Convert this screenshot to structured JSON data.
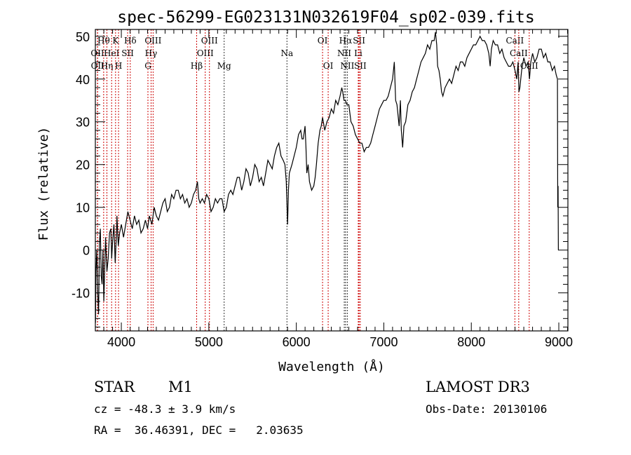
{
  "chart_data": {
    "type": "line",
    "title": "spec-56299-EG023131N032619F04_sp02-039.fits",
    "xlabel": "Wavelength (Å)",
    "ylabel": "Flux (relative)",
    "xlim": [
      3703,
      9104
    ],
    "ylim": [
      -18.9,
      51.6
    ],
    "xticks": [
      4000,
      5000,
      6000,
      7000,
      8000,
      9000
    ],
    "yticks": [
      -10,
      0,
      10,
      20,
      30,
      40,
      50
    ],
    "grid": false,
    "series": [
      {
        "name": "flux",
        "color": "#000000",
        "points": [
          [
            3705,
            -17
          ],
          [
            3710,
            -5
          ],
          [
            3720,
            0
          ],
          [
            3730,
            -10
          ],
          [
            3740,
            -15
          ],
          [
            3750,
            2
          ],
          [
            3760,
            5
          ],
          [
            3770,
            -6
          ],
          [
            3780,
            -8
          ],
          [
            3790,
            0
          ],
          [
            3800,
            -12
          ],
          [
            3810,
            -4
          ],
          [
            3820,
            3
          ],
          [
            3835,
            -5
          ],
          [
            3850,
            -2
          ],
          [
            3865,
            4
          ],
          [
            3880,
            5
          ],
          [
            3890,
            -2
          ],
          [
            3900,
            2
          ],
          [
            3915,
            6
          ],
          [
            3930,
            -3
          ],
          [
            3945,
            4
          ],
          [
            3950,
            8
          ],
          [
            3965,
            1
          ],
          [
            3980,
            4
          ],
          [
            4000,
            6
          ],
          [
            4025,
            3
          ],
          [
            4050,
            6
          ],
          [
            4075,
            9
          ],
          [
            4100,
            7
          ],
          [
            4125,
            5
          ],
          [
            4150,
            8
          ],
          [
            4175,
            6
          ],
          [
            4200,
            7
          ],
          [
            4225,
            4
          ],
          [
            4250,
            5
          ],
          [
            4275,
            7
          ],
          [
            4300,
            5
          ],
          [
            4320,
            8
          ],
          [
            4350,
            6
          ],
          [
            4375,
            10
          ],
          [
            4400,
            8
          ],
          [
            4425,
            7
          ],
          [
            4450,
            9
          ],
          [
            4475,
            11
          ],
          [
            4500,
            12
          ],
          [
            4525,
            9
          ],
          [
            4550,
            10
          ],
          [
            4575,
            13
          ],
          [
            4600,
            12
          ],
          [
            4625,
            14
          ],
          [
            4650,
            14
          ],
          [
            4675,
            12
          ],
          [
            4700,
            13
          ],
          [
            4725,
            11
          ],
          [
            4750,
            12
          ],
          [
            4775,
            10
          ],
          [
            4800,
            11
          ],
          [
            4825,
            13
          ],
          [
            4850,
            14
          ],
          [
            4870,
            16
          ],
          [
            4885,
            12
          ],
          [
            4900,
            11
          ],
          [
            4925,
            12
          ],
          [
            4950,
            11
          ],
          [
            4975,
            13
          ],
          [
            5000,
            12
          ],
          [
            5025,
            9
          ],
          [
            5050,
            10
          ],
          [
            5075,
            12
          ],
          [
            5100,
            11
          ],
          [
            5125,
            12
          ],
          [
            5150,
            12
          ],
          [
            5175,
            9
          ],
          [
            5200,
            10
          ],
          [
            5225,
            13
          ],
          [
            5250,
            14
          ],
          [
            5275,
            13
          ],
          [
            5300,
            15
          ],
          [
            5325,
            17
          ],
          [
            5350,
            17
          ],
          [
            5375,
            14
          ],
          [
            5400,
            16
          ],
          [
            5425,
            19
          ],
          [
            5450,
            18
          ],
          [
            5475,
            15
          ],
          [
            5500,
            17
          ],
          [
            5525,
            20
          ],
          [
            5550,
            19
          ],
          [
            5575,
            16
          ],
          [
            5600,
            17
          ],
          [
            5625,
            15
          ],
          [
            5650,
            18
          ],
          [
            5675,
            21
          ],
          [
            5700,
            20
          ],
          [
            5725,
            19
          ],
          [
            5750,
            22
          ],
          [
            5775,
            24
          ],
          [
            5800,
            25
          ],
          [
            5825,
            22
          ],
          [
            5850,
            21
          ],
          [
            5870,
            20
          ],
          [
            5885,
            16
          ],
          [
            5900,
            6
          ],
          [
            5910,
            14
          ],
          [
            5920,
            18
          ],
          [
            5950,
            20
          ],
          [
            5975,
            22
          ],
          [
            6000,
            24
          ],
          [
            6025,
            27
          ],
          [
            6050,
            28
          ],
          [
            6065,
            26
          ],
          [
            6080,
            26
          ],
          [
            6100,
            29
          ],
          [
            6110,
            24
          ],
          [
            6120,
            18
          ],
          [
            6135,
            20
          ],
          [
            6150,
            16
          ],
          [
            6175,
            14
          ],
          [
            6200,
            15
          ],
          [
            6215,
            17
          ],
          [
            6230,
            20
          ],
          [
            6250,
            25
          ],
          [
            6270,
            28
          ],
          [
            6285,
            29
          ],
          [
            6300,
            31
          ],
          [
            6325,
            28
          ],
          [
            6350,
            30
          ],
          [
            6375,
            31
          ],
          [
            6400,
            33
          ],
          [
            6425,
            32
          ],
          [
            6450,
            35
          ],
          [
            6475,
            34
          ],
          [
            6500,
            36
          ],
          [
            6520,
            38
          ],
          [
            6530,
            37
          ],
          [
            6545,
            35
          ],
          [
            6560,
            35
          ],
          [
            6580,
            34
          ],
          [
            6600,
            34
          ],
          [
            6625,
            30
          ],
          [
            6650,
            29
          ],
          [
            6675,
            27
          ],
          [
            6700,
            26
          ],
          [
            6725,
            25
          ],
          [
            6750,
            25
          ],
          [
            6775,
            23
          ],
          [
            6800,
            24
          ],
          [
            6825,
            24
          ],
          [
            6850,
            25
          ],
          [
            6875,
            27
          ],
          [
            6900,
            29
          ],
          [
            6925,
            31
          ],
          [
            6950,
            33
          ],
          [
            6975,
            34
          ],
          [
            7000,
            35
          ],
          [
            7025,
            35
          ],
          [
            7050,
            36
          ],
          [
            7075,
            38
          ],
          [
            7100,
            40
          ],
          [
            7115,
            43
          ],
          [
            7120,
            44
          ],
          [
            7135,
            35
          ],
          [
            7150,
            34
          ],
          [
            7175,
            29
          ],
          [
            7190,
            35
          ],
          [
            7200,
            28
          ],
          [
            7215,
            24
          ],
          [
            7230,
            29
          ],
          [
            7250,
            30
          ],
          [
            7275,
            34
          ],
          [
            7300,
            35
          ],
          [
            7325,
            37
          ],
          [
            7350,
            38
          ],
          [
            7375,
            40
          ],
          [
            7400,
            42
          ],
          [
            7425,
            44
          ],
          [
            7450,
            45
          ],
          [
            7475,
            46
          ],
          [
            7500,
            48
          ],
          [
            7525,
            47
          ],
          [
            7550,
            49
          ],
          [
            7575,
            49
          ],
          [
            7590,
            51
          ],
          [
            7605,
            48
          ],
          [
            7615,
            43
          ],
          [
            7630,
            42
          ],
          [
            7645,
            40
          ],
          [
            7660,
            37
          ],
          [
            7675,
            36
          ],
          [
            7700,
            38
          ],
          [
            7725,
            39
          ],
          [
            7750,
            40
          ],
          [
            7775,
            39
          ],
          [
            7800,
            41
          ],
          [
            7825,
            43
          ],
          [
            7850,
            42
          ],
          [
            7875,
            44
          ],
          [
            7900,
            44
          ],
          [
            7925,
            43
          ],
          [
            7950,
            45
          ],
          [
            7975,
            46
          ],
          [
            8000,
            47
          ],
          [
            8025,
            48
          ],
          [
            8050,
            48
          ],
          [
            8075,
            49
          ],
          [
            8100,
            50
          ],
          [
            8125,
            49
          ],
          [
            8150,
            49
          ],
          [
            8175,
            48
          ],
          [
            8200,
            46
          ],
          [
            8215,
            43
          ],
          [
            8230,
            47
          ],
          [
            8250,
            49
          ],
          [
            8275,
            48
          ],
          [
            8300,
            48
          ],
          [
            8325,
            46
          ],
          [
            8350,
            47
          ],
          [
            8375,
            45
          ],
          [
            8400,
            44
          ],
          [
            8425,
            43
          ],
          [
            8450,
            43
          ],
          [
            8475,
            44
          ],
          [
            8500,
            42
          ],
          [
            8520,
            40
          ],
          [
            8535,
            44
          ],
          [
            8545,
            37
          ],
          [
            8555,
            38
          ],
          [
            8575,
            42
          ],
          [
            8600,
            45
          ],
          [
            8625,
            43
          ],
          [
            8650,
            44
          ],
          [
            8665,
            40
          ],
          [
            8680,
            44
          ],
          [
            8700,
            46
          ],
          [
            8725,
            44
          ],
          [
            8750,
            45
          ],
          [
            8775,
            47
          ],
          [
            8800,
            47
          ],
          [
            8825,
            45
          ],
          [
            8850,
            46
          ],
          [
            8875,
            44
          ],
          [
            8900,
            44
          ],
          [
            8925,
            42
          ],
          [
            8950,
            43
          ],
          [
            8970,
            41
          ],
          [
            8985,
            40
          ],
          [
            8988,
            10
          ],
          [
            8992,
            15
          ],
          [
            8995,
            0
          ]
        ]
      }
    ],
    "line_markers": [
      {
        "name": "OII",
        "wavelength": 3727,
        "row": 2,
        "color": "#cc0000"
      },
      {
        "name": "OII",
        "wavelength": 3729,
        "row": 3,
        "color": "#cc0000"
      },
      {
        "name": "Hθ",
        "wavelength": 3798,
        "row": 1,
        "color": "#cc0000"
      },
      {
        "name": "Hη",
        "wavelength": 3835,
        "row": 3,
        "color": "#cc0000"
      },
      {
        "name": "HeI",
        "wavelength": 3889,
        "row": 2,
        "color": "#cc0000"
      },
      {
        "name": "K",
        "wavelength": 3934,
        "row": 1,
        "color": "#cc0000"
      },
      {
        "name": "H",
        "wavelength": 3968,
        "row": 3,
        "color": "#cc0000"
      },
      {
        "name": "SII",
        "wavelength": 4072,
        "row": 2,
        "color": "#cc0000"
      },
      {
        "name": "Hδ",
        "wavelength": 4102,
        "row": 1,
        "color": "#cc0000"
      },
      {
        "name": "G",
        "wavelength": 4304,
        "row": 3,
        "color": "#cc0000"
      },
      {
        "name": "Hγ",
        "wavelength": 4340,
        "row": 2,
        "color": "#cc0000"
      },
      {
        "name": "OIII",
        "wavelength": 4363,
        "row": 1,
        "color": "#cc0000"
      },
      {
        "name": "Hβ",
        "wavelength": 4861,
        "row": 3,
        "color": "#cc0000"
      },
      {
        "name": "OIII",
        "wavelength": 4959,
        "row": 2,
        "color": "#cc0000"
      },
      {
        "name": "OIII",
        "wavelength": 5007,
        "row": 1,
        "color": "#cc0000"
      },
      {
        "name": "Mg",
        "wavelength": 5175,
        "row": 3,
        "color": "#333333"
      },
      {
        "name": "Na",
        "wavelength": 5893,
        "row": 2,
        "color": "#333333"
      },
      {
        "name": "OI",
        "wavelength": 6300,
        "row": 1,
        "color": "#cc0000"
      },
      {
        "name": "OI",
        "wavelength": 6364,
        "row": 3,
        "color": "#cc0000"
      },
      {
        "name": "NII",
        "wavelength": 6548,
        "row": 2,
        "color": "#333333"
      },
      {
        "name": "Hα",
        "wavelength": 6563,
        "row": 1,
        "color": "#333333"
      },
      {
        "name": "NII",
        "wavelength": 6583,
        "row": 3,
        "color": "#333333"
      },
      {
        "name": "Li",
        "wavelength": 6708,
        "row": 2,
        "color": "#cc0000"
      },
      {
        "name": "SII",
        "wavelength": 6717,
        "row": 1,
        "color": "#cc0000"
      },
      {
        "name": "SII",
        "wavelength": 6731,
        "row": 3,
        "color": "#cc0000"
      },
      {
        "name": "CaII",
        "wavelength": 8498,
        "row": 1,
        "color": "#cc0000"
      },
      {
        "name": "CaII",
        "wavelength": 8542,
        "row": 2,
        "color": "#cc0000"
      },
      {
        "name": "CaII",
        "wavelength": 8662,
        "row": 3,
        "color": "#cc0000"
      }
    ]
  },
  "info": {
    "class": "STAR",
    "subclass": "M1",
    "survey": "LAMOST DR3",
    "cz": "cz = -48.3 ± 3.9 km/s",
    "obs_date": "Obs-Date: 20130106",
    "coords": "RA =  36.46391, DEC =   2.03635"
  }
}
